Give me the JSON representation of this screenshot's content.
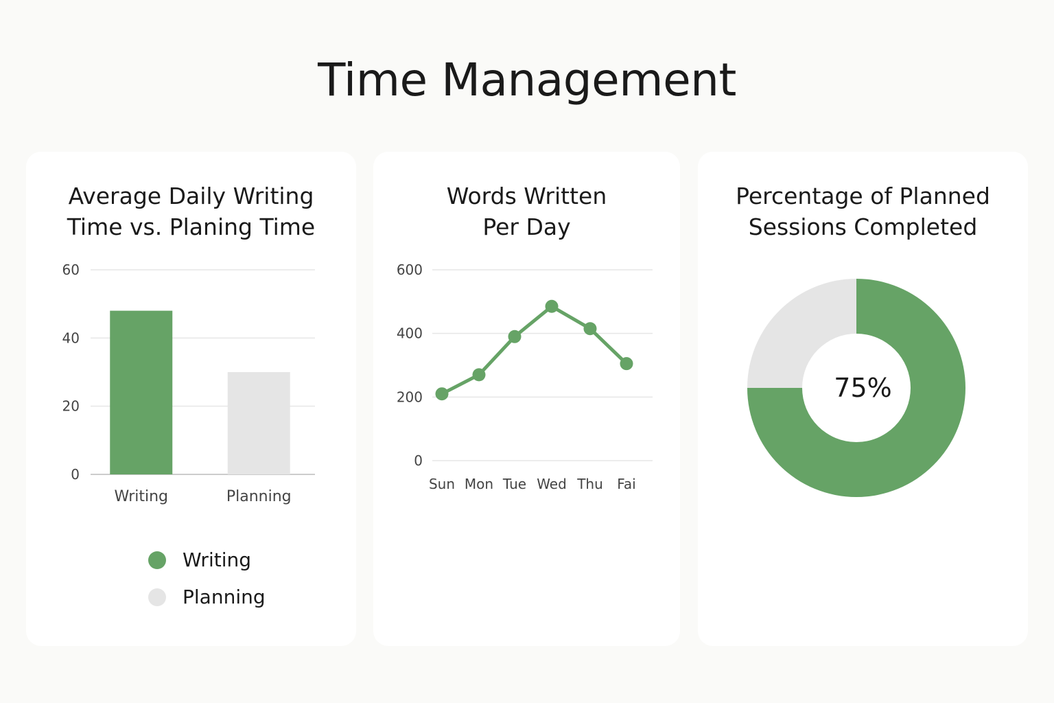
{
  "page": {
    "title": "Time Management"
  },
  "colors": {
    "green": "#66a366",
    "gray": "#e5e5e5",
    "grid": "#e6e6e6",
    "axis": "#cccccc"
  },
  "chart_data": [
    {
      "type": "bar",
      "title_lines": [
        "Average Daily Writing",
        "Time vs. Planing Time"
      ],
      "categories": [
        "Writing",
        "Planning"
      ],
      "values": [
        48,
        30
      ],
      "bar_colors": [
        "#66a366",
        "#e5e5e5"
      ],
      "ylim": [
        0,
        60
      ],
      "yticks": [
        0,
        20,
        40,
        60
      ],
      "grid": true,
      "legend": {
        "placement": "bottom",
        "items": [
          {
            "label": "Writing",
            "color": "#66a366"
          },
          {
            "label": "Planning",
            "color": "#e5e5e5"
          }
        ]
      }
    },
    {
      "type": "line",
      "title_lines": [
        "Words Written",
        "Per Day"
      ],
      "categories": [
        "Sun",
        "Mon",
        "Tue",
        "Wed",
        "Thu",
        "Fai"
      ],
      "series": [
        {
          "values": [
            210,
            270,
            390,
            485,
            415,
            305
          ],
          "color": "#66a366"
        }
      ],
      "ylim": [
        0,
        600
      ],
      "yticks": [
        0,
        200,
        400,
        600
      ],
      "grid": true
    },
    {
      "type": "pie",
      "title_lines": [
        "Percentage of Planned",
        "Sessions Completed"
      ],
      "slices": [
        {
          "value": 75,
          "color": "#66a366"
        },
        {
          "value": 25,
          "color": "#e5e5e5"
        }
      ],
      "center_label": "75%"
    }
  ]
}
